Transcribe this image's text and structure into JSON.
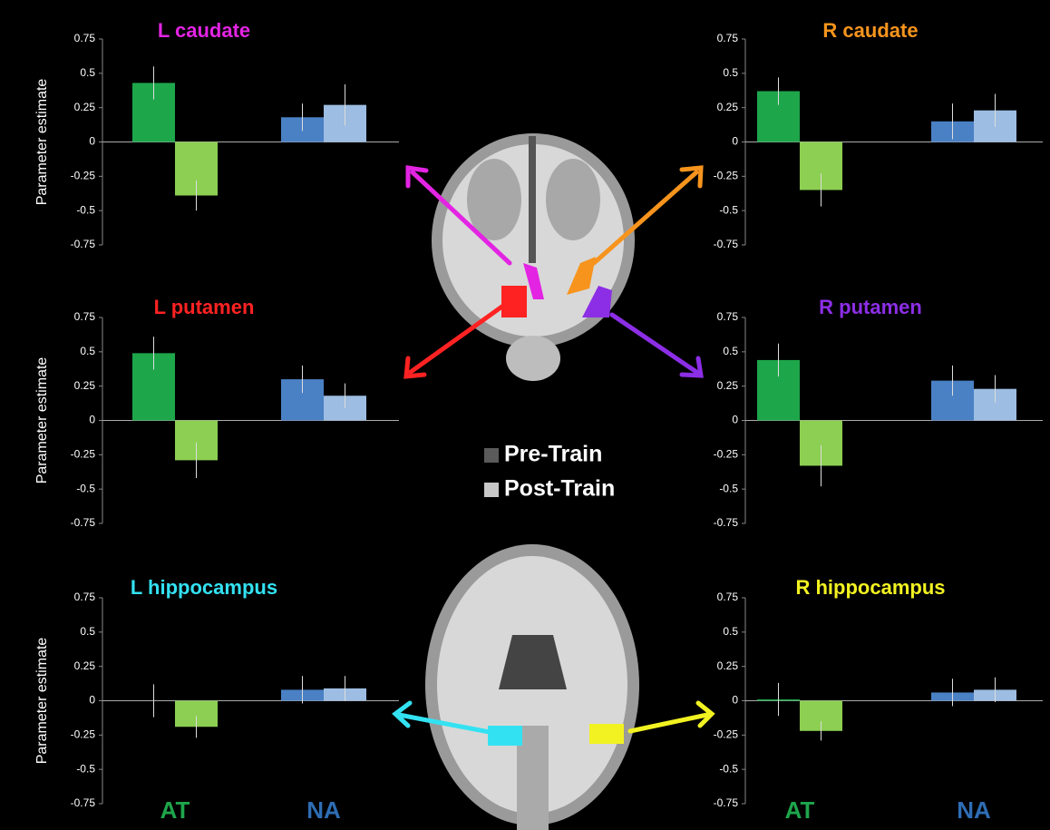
{
  "legend": {
    "items": [
      {
        "label": "Pre-Train",
        "color": "#5a5a5a"
      },
      {
        "label": "Post-Train",
        "color": "#c8c8c8"
      }
    ]
  },
  "chart_data": [
    {
      "type": "bar",
      "title": "L caudate",
      "title_color": "#e324e3",
      "ylabel": "Parameter estimate",
      "categories": [
        null,
        null
      ],
      "ylim": [
        -0.75,
        0.75
      ],
      "yticks": [
        0.75,
        0.5,
        0.25,
        0,
        -0.25,
        -0.5,
        -0.75
      ],
      "series": [
        {
          "colors": [
            "#1ea64b",
            "#4a80c4"
          ],
          "values": [
            0.43,
            0.18
          ],
          "errors": [
            0.12,
            0.1
          ]
        },
        {
          "colors": [
            "#8ccf52",
            "#9dbde2"
          ],
          "values": [
            -0.39,
            0.27
          ],
          "errors": [
            0.11,
            0.15
          ]
        }
      ]
    },
    {
      "type": "bar",
      "title": "R caudate",
      "title_color": "#f7941d",
      "categories": [
        null,
        null
      ],
      "ylim": [
        -0.75,
        0.75
      ],
      "yticks": [
        0.75,
        0.5,
        0.25,
        0,
        -0.25,
        -0.5,
        -0.75
      ],
      "series": [
        {
          "colors": [
            "#1ea64b",
            "#4a80c4"
          ],
          "values": [
            0.37,
            0.15
          ],
          "errors": [
            0.1,
            0.13
          ]
        },
        {
          "colors": [
            "#8ccf52",
            "#9dbde2"
          ],
          "values": [
            -0.35,
            0.23
          ],
          "errors": [
            0.12,
            0.12
          ]
        }
      ]
    },
    {
      "type": "bar",
      "title": "L putamen",
      "title_color": "#ff2222",
      "ylabel": "Parameter estimate",
      "categories": [
        null,
        null
      ],
      "ylim": [
        -0.75,
        0.75
      ],
      "yticks": [
        0.75,
        0.5,
        0.25,
        0,
        -0.25,
        -0.5,
        -0.75
      ],
      "series": [
        {
          "colors": [
            "#1ea64b",
            "#4a80c4"
          ],
          "values": [
            0.49,
            0.3
          ],
          "errors": [
            0.12,
            0.1
          ]
        },
        {
          "colors": [
            "#8ccf52",
            "#9dbde2"
          ],
          "values": [
            -0.29,
            0.18
          ],
          "errors": [
            0.13,
            0.09
          ]
        }
      ]
    },
    {
      "type": "bar",
      "title": "R putamen",
      "title_color": "#8c2ee6",
      "categories": [
        null,
        null
      ],
      "ylim": [
        -0.75,
        0.75
      ],
      "yticks": [
        0.75,
        0.5,
        0.25,
        0,
        -0.25,
        -0.5,
        -0.75
      ],
      "series": [
        {
          "colors": [
            "#1ea64b",
            "#4a80c4"
          ],
          "values": [
            0.44,
            0.29
          ],
          "errors": [
            0.12,
            0.11
          ]
        },
        {
          "colors": [
            "#8ccf52",
            "#9dbde2"
          ],
          "values": [
            -0.33,
            0.23
          ],
          "errors": [
            0.15,
            0.1
          ]
        }
      ]
    },
    {
      "type": "bar",
      "title": "L hippocampus",
      "title_color": "#33e2f2",
      "ylabel": "Parameter estimate",
      "categories": [
        "AT",
        "NA"
      ],
      "category_colors": [
        "#1ea64b",
        "#2e6db4"
      ],
      "ylim": [
        -0.75,
        0.75
      ],
      "yticks": [
        0.75,
        0.5,
        0.25,
        0,
        -0.25,
        -0.5,
        -0.75
      ],
      "series": [
        {
          "colors": [
            "#1ea64b",
            "#4a80c4"
          ],
          "values": [
            0.0,
            0.08
          ],
          "errors": [
            0.12,
            0.1
          ]
        },
        {
          "colors": [
            "#8ccf52",
            "#9dbde2"
          ],
          "values": [
            -0.19,
            0.09
          ],
          "errors": [
            0.08,
            0.09
          ]
        }
      ]
    },
    {
      "type": "bar",
      "title": "R hippocampus",
      "title_color": "#f2f222",
      "categories": [
        "AT",
        "NA"
      ],
      "category_colors": [
        "#1ea64b",
        "#2e6db4"
      ],
      "ylim": [
        -0.75,
        0.75
      ],
      "yticks": [
        0.75,
        0.5,
        0.25,
        0,
        -0.25,
        -0.5,
        -0.75
      ],
      "series": [
        {
          "colors": [
            "#1ea64b",
            "#4a80c4"
          ],
          "values": [
            0.01,
            0.06
          ],
          "errors": [
            0.12,
            0.1
          ]
        },
        {
          "colors": [
            "#8ccf52",
            "#9dbde2"
          ],
          "values": [
            -0.22,
            0.08
          ],
          "errors": [
            0.07,
            0.09
          ]
        }
      ]
    }
  ]
}
